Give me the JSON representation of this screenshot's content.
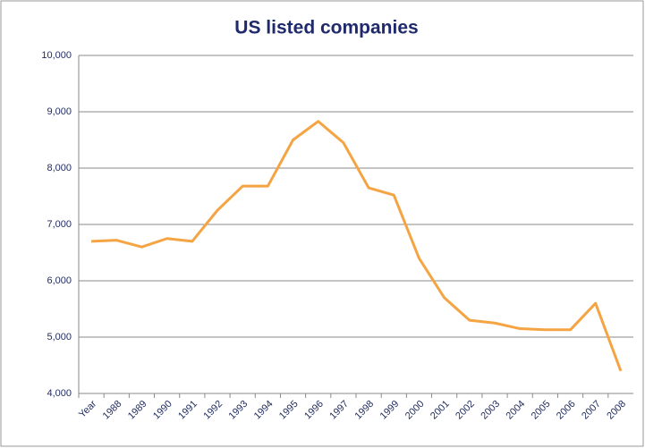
{
  "chart_data": {
    "type": "line",
    "title": "US listed companies",
    "categories": [
      "Year",
      "1988",
      "1989",
      "1990",
      "1991",
      "1992",
      "1993",
      "1994",
      "1995",
      "1996",
      "1997",
      "1998",
      "1999",
      "2000",
      "2001",
      "2002",
      "2003",
      "2004",
      "2005",
      "2006",
      "2007",
      "2008"
    ],
    "values": [
      6700,
      6720,
      6600,
      6750,
      6700,
      7250,
      7680,
      7680,
      8500,
      8830,
      8450,
      7650,
      7520,
      6400,
      5700,
      5300,
      5250,
      5150,
      5130,
      5130,
      5600,
      4400
    ],
    "color": "#f5a443",
    "ylim": [
      4000,
      10000
    ],
    "yticks": [
      {
        "value": 4000,
        "label": "4,000"
      },
      {
        "value": 5000,
        "label": "5,000"
      },
      {
        "value": 6000,
        "label": "6,000"
      },
      {
        "value": 7000,
        "label": "7,000"
      },
      {
        "value": 8000,
        "label": "8,000"
      },
      {
        "value": 9000,
        "label": "9,000"
      },
      {
        "value": 10000,
        "label": "10,000"
      }
    ],
    "grid": true
  }
}
